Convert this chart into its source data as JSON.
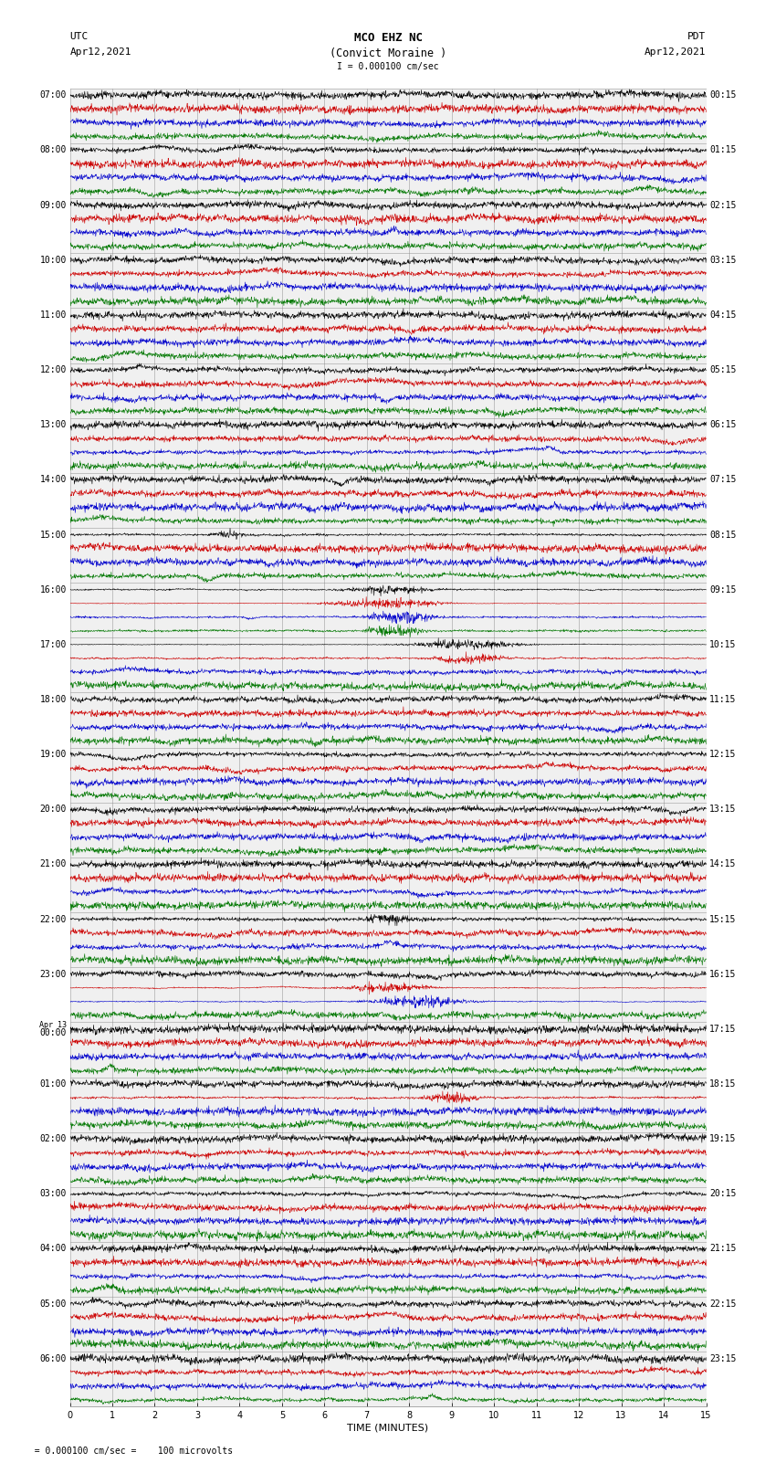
{
  "title_line1": "MCO EHZ NC",
  "title_line2": "(Convict Moraine )",
  "title_scale": "I = 0.000100 cm/sec",
  "left_header_line1": "UTC",
  "left_header_line2": "Apr12,2021",
  "right_header_line1": "PDT",
  "right_header_line2": "Apr12,2021",
  "bottom_label": "TIME (MINUTES)",
  "bottom_note": "  = 0.000100 cm/sec =    100 microvolts",
  "xlabel_ticks": [
    0,
    1,
    2,
    3,
    4,
    5,
    6,
    7,
    8,
    9,
    10,
    11,
    12,
    13,
    14,
    15
  ],
  "left_times_labeled": [
    [
      "07:00",
      0
    ],
    [
      "08:00",
      4
    ],
    [
      "09:00",
      8
    ],
    [
      "10:00",
      12
    ],
    [
      "11:00",
      16
    ],
    [
      "12:00",
      20
    ],
    [
      "13:00",
      24
    ],
    [
      "14:00",
      28
    ],
    [
      "15:00",
      32
    ],
    [
      "16:00",
      36
    ],
    [
      "17:00",
      40
    ],
    [
      "18:00",
      44
    ],
    [
      "19:00",
      48
    ],
    [
      "20:00",
      52
    ],
    [
      "21:00",
      56
    ],
    [
      "22:00",
      60
    ],
    [
      "23:00",
      64
    ],
    [
      "Apr 13\n00:00",
      68
    ],
    [
      "01:00",
      72
    ],
    [
      "02:00",
      76
    ],
    [
      "03:00",
      80
    ],
    [
      "04:00",
      84
    ],
    [
      "05:00",
      88
    ],
    [
      "06:00",
      92
    ]
  ],
  "right_times_labeled": [
    [
      "00:15",
      0
    ],
    [
      "01:15",
      4
    ],
    [
      "02:15",
      8
    ],
    [
      "03:15",
      12
    ],
    [
      "04:15",
      16
    ],
    [
      "05:15",
      20
    ],
    [
      "06:15",
      24
    ],
    [
      "07:15",
      28
    ],
    [
      "08:15",
      32
    ],
    [
      "09:15",
      36
    ],
    [
      "10:15",
      40
    ],
    [
      "11:15",
      44
    ],
    [
      "12:15",
      48
    ],
    [
      "13:15",
      52
    ],
    [
      "14:15",
      56
    ],
    [
      "15:15",
      60
    ],
    [
      "16:15",
      64
    ],
    [
      "17:15",
      68
    ],
    [
      "18:15",
      72
    ],
    [
      "19:15",
      76
    ],
    [
      "20:15",
      80
    ],
    [
      "21:15",
      84
    ],
    [
      "22:15",
      88
    ],
    [
      "23:15",
      92
    ]
  ],
  "trace_colors": [
    "#000000",
    "#cc0000",
    "#0000cc",
    "#007700"
  ],
  "n_rows": 96,
  "n_hours": 24,
  "background_color": "#ffffff",
  "plot_bg_color": "#f0f0f0",
  "separator_color": "#888888",
  "noise_scale": 0.25,
  "font_size_title": 9,
  "font_size_labels": 8,
  "font_size_ticks": 7,
  "figsize": [
    8.5,
    16.13
  ],
  "dpi": 100,
  "lw": 0.4
}
